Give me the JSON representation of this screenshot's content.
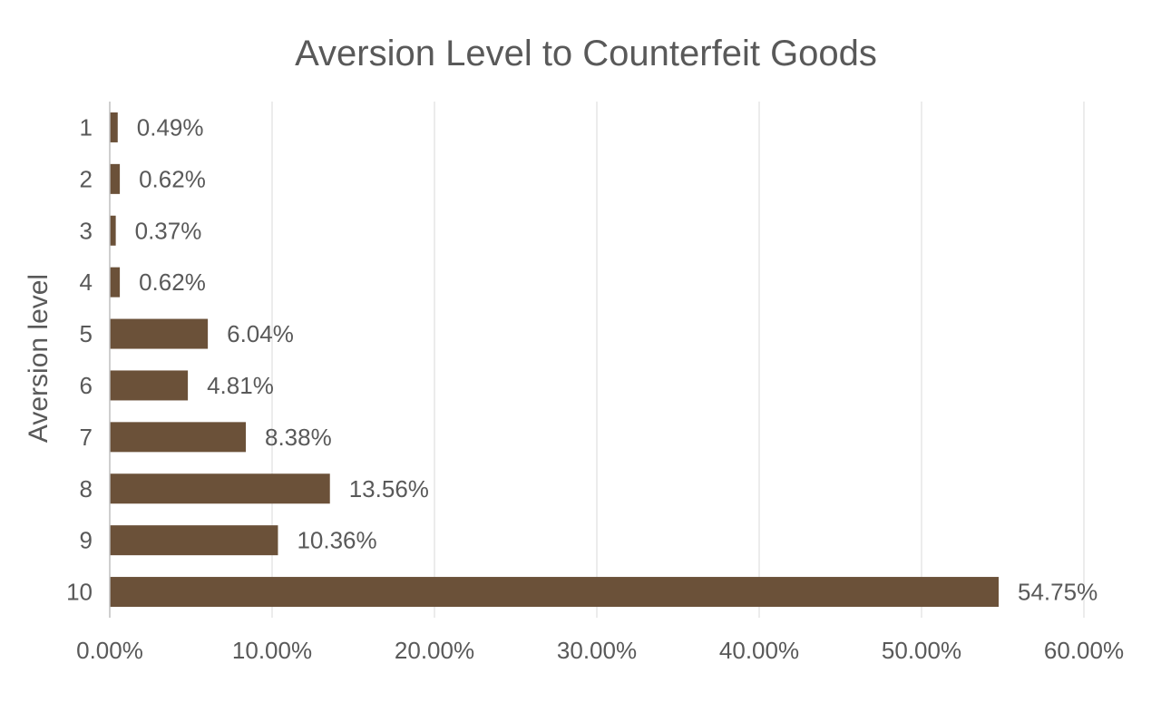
{
  "chart_data": {
    "type": "bar",
    "orientation": "horizontal",
    "title": "Aversion Level to Counterfeit Goods",
    "xlabel": "",
    "ylabel": "Aversion level",
    "categories": [
      "1",
      "2",
      "3",
      "4",
      "5",
      "6",
      "7",
      "8",
      "9",
      "10"
    ],
    "values": [
      0.49,
      0.62,
      0.37,
      0.62,
      6.04,
      4.81,
      8.38,
      13.56,
      10.36,
      54.75
    ],
    "value_labels": [
      "0.49%",
      "0.62%",
      "0.37%",
      "0.62%",
      "6.04%",
      "4.81%",
      "8.38%",
      "13.56%",
      "10.36%",
      "54.75%"
    ],
    "xlim": [
      0,
      60
    ],
    "x_ticks": [
      0,
      10,
      20,
      30,
      40,
      50,
      60
    ],
    "x_tick_labels": [
      "0.00%",
      "10.00%",
      "20.00%",
      "30.00%",
      "40.00%",
      "50.00%",
      "60.00%"
    ],
    "bar_color": "#6b5139",
    "grid": true,
    "legend": "none"
  }
}
